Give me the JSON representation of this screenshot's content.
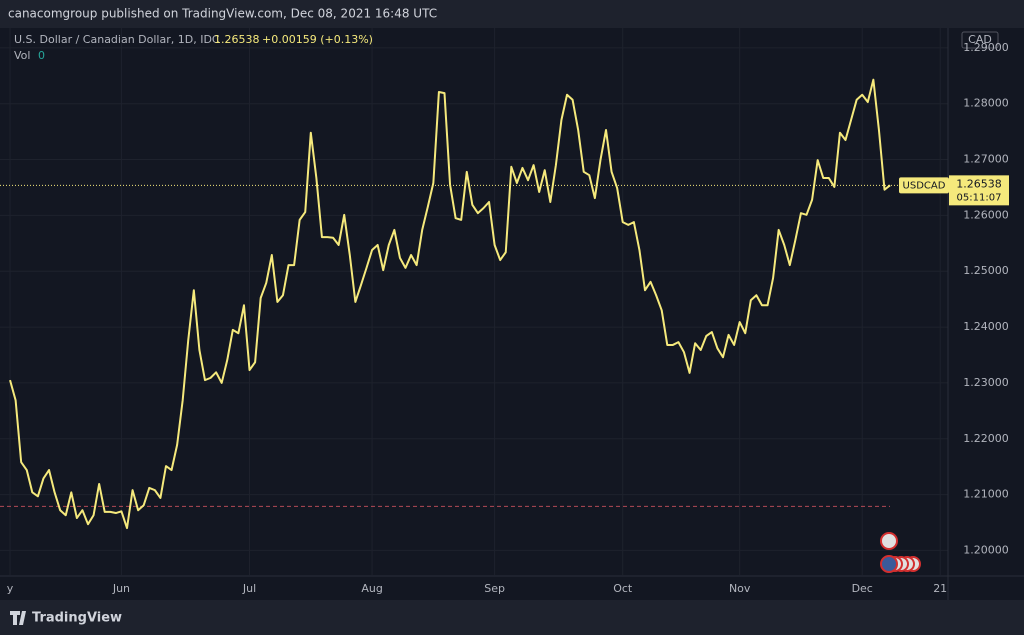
{
  "header": "canacomgroup published on TradingView.com, Dec 08, 2021 16:48 UTC",
  "footer": "TradingView",
  "chart_data": {
    "type": "line",
    "title": "U.S. Dollar / Canadian Dollar, 1D, IDC",
    "last_value": 1.26538,
    "change": "+0.00159 (+0.13%)",
    "volume_label": "Vol",
    "volume": 0,
    "currency": "CAD",
    "series": [
      {
        "name": "USDCAD",
        "color": "#f5e97c",
        "values": [
          1.2305,
          1.2269,
          1.2158,
          1.2144,
          1.2104,
          1.2097,
          1.2129,
          1.2144,
          1.2104,
          1.2072,
          1.2063,
          1.2104,
          1.2058,
          1.2072,
          1.2047,
          1.2063,
          1.2119,
          1.2069,
          1.2069,
          1.2067,
          1.207,
          1.204,
          1.2108,
          1.2072,
          1.2081,
          1.2112,
          1.2108,
          1.2094,
          1.2151,
          1.2144,
          1.2189,
          1.2269,
          1.2377,
          1.2466,
          1.2359,
          1.2305,
          1.2309,
          1.2319,
          1.23,
          1.2341,
          1.2395,
          1.2389,
          1.2439,
          1.2323,
          1.2337,
          1.2452,
          1.2479,
          1.2529,
          1.2445,
          1.2457,
          1.2511,
          1.2511,
          1.2592,
          1.2606,
          1.2748,
          1.2667,
          1.2561,
          1.2561,
          1.256,
          1.2547,
          1.2601,
          1.2529,
          1.2445,
          1.2475,
          1.2506,
          1.2538,
          1.2547,
          1.2502,
          1.2547,
          1.2574,
          1.2524,
          1.2506,
          1.2529,
          1.2511,
          1.2574,
          1.2615,
          1.2658,
          1.2821,
          1.2819,
          1.2655,
          1.2595,
          1.2592,
          1.2678,
          1.2619,
          1.2604,
          1.2613,
          1.2624,
          1.2547,
          1.252,
          1.2534,
          1.2687,
          1.2658,
          1.2685,
          1.2663,
          1.269,
          1.2642,
          1.2681,
          1.2624,
          1.269,
          1.2771,
          1.2816,
          1.2807,
          1.2753,
          1.2678,
          1.2672,
          1.2631,
          1.2699,
          1.2753,
          1.2678,
          1.2649,
          1.2588,
          1.2583,
          1.2588,
          1.2538,
          1.2466,
          1.2481,
          1.2457,
          1.243,
          1.2368,
          1.2368,
          1.2373,
          1.2355,
          1.2318,
          1.2371,
          1.2359,
          1.2384,
          1.2391,
          1.2362,
          1.2346,
          1.2386,
          1.2368,
          1.2409,
          1.2389,
          1.2448,
          1.2457,
          1.2439,
          1.2439,
          1.2488,
          1.2574,
          1.2547,
          1.2511,
          1.2556,
          1.2604,
          1.2601,
          1.2628,
          1.2699,
          1.2667,
          1.2667,
          1.2651,
          1.2748,
          1.2735,
          1.2771,
          1.2807,
          1.2816,
          1.2803,
          1.2843,
          1.2753,
          1.2646,
          1.26538
        ]
      }
    ],
    "countdown": "05:11:07",
    "reference_line": 1.2079,
    "xlim": [
      -1.8,
      168.4
    ],
    "xticks": [
      {
        "value": 0,
        "label": "y"
      },
      {
        "value": 20,
        "label": "Jun"
      },
      {
        "value": 43,
        "label": "Jul"
      },
      {
        "value": 65,
        "label": "Aug"
      },
      {
        "value": 87,
        "label": "Sep"
      },
      {
        "value": 110,
        "label": "Oct"
      },
      {
        "value": 131,
        "label": "Nov"
      },
      {
        "value": 153,
        "label": "Dec"
      },
      {
        "value": 167,
        "label": "21"
      }
    ],
    "ylim": [
      1.1956,
      1.2932
    ],
    "yticks": [
      {
        "value": 1.2,
        "label": "1.20000"
      },
      {
        "value": 1.21,
        "label": "1.21000"
      },
      {
        "value": 1.22,
        "label": "1.22000"
      },
      {
        "value": 1.23,
        "label": "1.23000"
      },
      {
        "value": 1.24,
        "label": "1.24000"
      },
      {
        "value": 1.25,
        "label": "1.25000"
      },
      {
        "value": 1.26,
        "label": "1.26000"
      },
      {
        "value": 1.27,
        "label": "1.27000"
      },
      {
        "value": 1.28,
        "label": "1.28000"
      },
      {
        "value": 1.29,
        "label": "1.29000"
      }
    ],
    "grid": true
  }
}
